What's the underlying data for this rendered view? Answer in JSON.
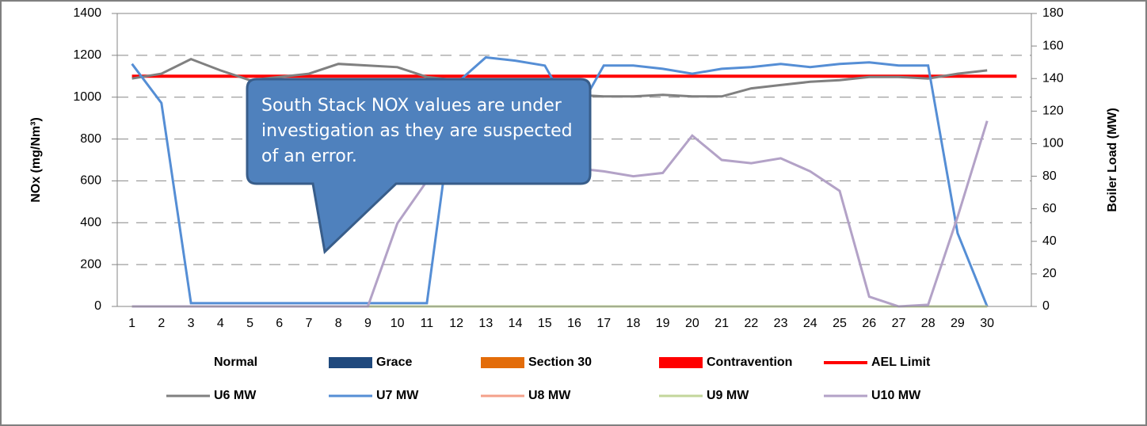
{
  "chart_data": {
    "type": "line",
    "y_label": "NOx (mg/Nm³)",
    "y2_label": "Boiler Load (MW)",
    "annotation": "South Stack NOX values are under investigation as they are suspected of an error.",
    "categories": [
      "1",
      "2",
      "3",
      "4",
      "5",
      "6",
      "7",
      "8",
      "9",
      "10",
      "11",
      "12",
      "13",
      "14",
      "15",
      "16",
      "17",
      "18",
      "19",
      "20",
      "21",
      "22",
      "23",
      "24",
      "25",
      "26",
      "27",
      "28",
      "29",
      "30",
      null
    ],
    "ylim": [
      0,
      1400
    ],
    "yticks": [
      0,
      200,
      400,
      600,
      800,
      1000,
      1200,
      1400
    ],
    "y2lim": [
      0,
      180
    ],
    "y2ticks": [
      0,
      20,
      40,
      60,
      80,
      100,
      120,
      140,
      160,
      180
    ],
    "grid": true,
    "series": [
      {
        "name": "Normal",
        "kind": "bar",
        "color": "#ffffff",
        "values": [
          null,
          null,
          null,
          null,
          null,
          null,
          null,
          null,
          null,
          null,
          null,
          null,
          null,
          null,
          null,
          null,
          null,
          null,
          null,
          null,
          null,
          null,
          null,
          null,
          null,
          null,
          null,
          null,
          null,
          null,
          null
        ]
      },
      {
        "name": "Grace",
        "kind": "bar",
        "color": "#1f497d",
        "values": [
          null,
          null,
          null,
          null,
          null,
          null,
          null,
          null,
          null,
          null,
          null,
          null,
          null,
          null,
          null,
          null,
          null,
          null,
          null,
          null,
          null,
          null,
          null,
          null,
          null,
          null,
          null,
          null,
          null,
          null,
          null
        ]
      },
      {
        "name": "Section 30",
        "kind": "bar",
        "color": "#e36c09",
        "values": [
          null,
          null,
          null,
          null,
          null,
          null,
          null,
          null,
          null,
          null,
          null,
          null,
          null,
          null,
          null,
          null,
          null,
          null,
          null,
          null,
          null,
          null,
          null,
          null,
          null,
          null,
          null,
          null,
          null,
          null,
          null
        ]
      },
      {
        "name": "Contravention",
        "kind": "bar",
        "color": "#ff0000",
        "values": [
          null,
          null,
          null,
          null,
          null,
          null,
          null,
          null,
          null,
          null,
          null,
          null,
          null,
          null,
          null,
          null,
          null,
          null,
          null,
          null,
          null,
          null,
          null,
          null,
          null,
          null,
          null,
          null,
          null,
          null,
          null
        ]
      },
      {
        "name": "AEL Limit",
        "kind": "line",
        "color": "#ff0000",
        "values": [
          1100,
          1100,
          1100,
          1100,
          1100,
          1100,
          1100,
          1100,
          1100,
          1100,
          1100,
          1100,
          1100,
          1100,
          1100,
          1100,
          1100,
          1100,
          1100,
          1100,
          1100,
          1100,
          1100,
          1100,
          1100,
          1100,
          1100,
          1100,
          1100,
          1100,
          1100
        ]
      },
      {
        "name": "U6 MW",
        "kind": "line",
        "axis": "y2",
        "color": "#808080",
        "values": [
          140,
          143,
          152,
          145,
          139,
          141,
          143,
          149,
          148,
          147,
          141,
          139,
          136,
          134,
          131,
          130,
          129,
          129,
          130,
          129,
          129,
          134,
          136,
          138,
          139,
          141,
          141,
          140,
          143,
          145,
          null
        ]
      },
      {
        "name": "U7 MW",
        "kind": "line",
        "axis": "y2",
        "color": "#558ed5",
        "values": [
          149,
          125,
          2,
          2,
          2,
          2,
          2,
          2,
          2,
          2,
          2,
          137,
          153,
          151,
          148,
          116,
          148,
          148,
          146,
          143,
          146,
          147,
          149,
          147,
          149,
          150,
          148,
          148,
          45,
          0,
          null
        ]
      },
      {
        "name": "U8 MW",
        "kind": "line",
        "axis": "y2",
        "color": "#f4a08a",
        "values": [
          0,
          0,
          0,
          0,
          0,
          0,
          0,
          0,
          0,
          0,
          0,
          0,
          0,
          0,
          0,
          0,
          0,
          0,
          0,
          0,
          0,
          0,
          0,
          0,
          0,
          0,
          0,
          0,
          0,
          0,
          null
        ]
      },
      {
        "name": "U9 MW",
        "kind": "line",
        "axis": "y2",
        "color": "#c3d69b",
        "values": [
          0,
          0,
          0,
          0,
          0,
          0,
          0,
          0,
          0,
          0,
          0,
          0,
          0,
          0,
          0,
          0,
          0,
          0,
          0,
          0,
          0,
          0,
          0,
          0,
          0,
          0,
          0,
          0,
          0,
          0,
          null
        ]
      },
      {
        "name": "U10 MW",
        "kind": "line",
        "axis": "y2",
        "color": "#b3a2c7",
        "values": [
          0,
          0,
          0,
          0,
          0,
          0,
          0,
          0,
          0,
          51,
          77,
          80,
          82,
          84,
          86,
          85,
          83,
          80,
          82,
          105,
          90,
          88,
          91,
          83,
          71,
          6,
          0,
          1,
          55,
          114,
          null
        ]
      }
    ]
  }
}
